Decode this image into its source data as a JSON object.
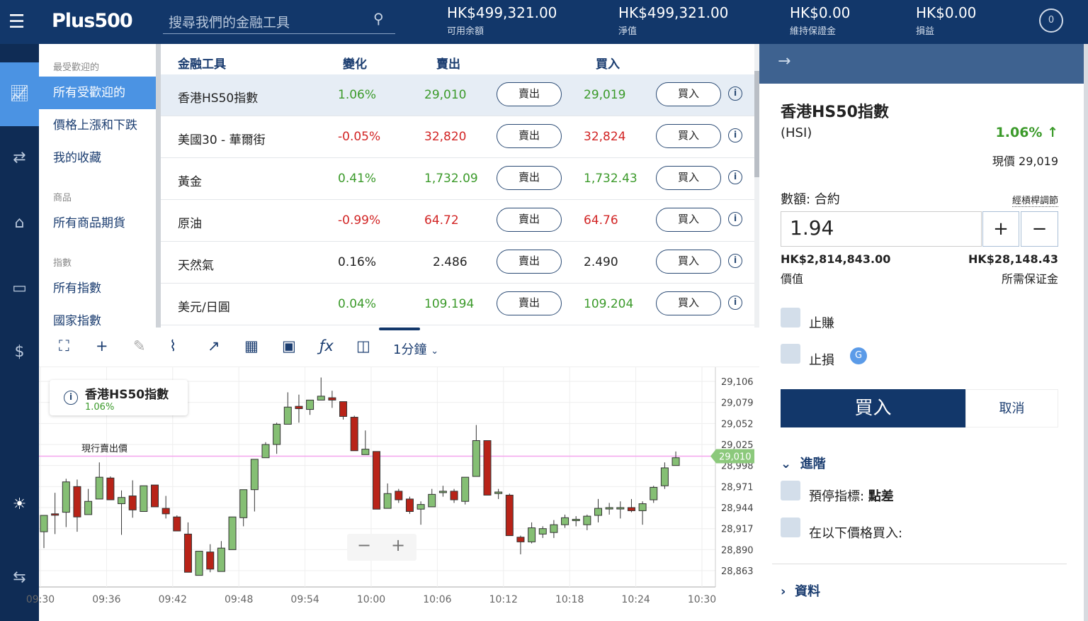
{
  "header": {
    "menu_icon": "hamburger-icon",
    "logo": "Plus500",
    "search_placeholder": "搜尋我們的金融工具",
    "stats": [
      {
        "value": "HK$499,321.00",
        "label": "可用余額"
      },
      {
        "value": "HK$499,321.00",
        "label": "淨值"
      },
      {
        "value": "HK$0.00",
        "label": "維持保證金"
      },
      {
        "value": "HK$0.00",
        "label": "損益"
      }
    ],
    "account_badge": "0"
  },
  "iconbar": [
    "chart-line-icon",
    "exchange-icon",
    "tag-icon",
    "briefcase-icon",
    "dollar-icon",
    "brightness-icon",
    "switch-icon"
  ],
  "menu": {
    "sections": [
      {
        "heading": "最受歡迎的",
        "items": [
          "所有受歡迎的",
          "價格上漲和下跌",
          "我的收藏"
        ]
      },
      {
        "heading": "商品",
        "items": [
          "所有商品期貨"
        ]
      },
      {
        "heading": "指數",
        "items": [
          "所有指數",
          "國家指數"
        ]
      }
    ],
    "active": "所有受歡迎的"
  },
  "table": {
    "headers": {
      "instrument": "金融工具",
      "change": "變化",
      "sell": "賣出",
      "buy": "買入"
    },
    "sell_label": "賣出",
    "buy_label": "買入",
    "rows": [
      {
        "name": "香港HS50指數",
        "change": "1.06%",
        "sell": "29,010",
        "buy": "29,019",
        "dir": "up"
      },
      {
        "name": "美國30 - 華爾街",
        "change": "-0.05%",
        "sell": "32,820",
        "buy": "32,824",
        "dir": "down"
      },
      {
        "name": "黃金",
        "change": "0.41%",
        "sell": "1,732.09",
        "buy": "1,732.43",
        "dir": "up"
      },
      {
        "name": "原油",
        "change": "-0.99%",
        "sell": "64.72",
        "buy": "64.76",
        "dir": "down"
      },
      {
        "name": "天然氣",
        "change": "0.16%",
        "sell": "2.486",
        "buy": "2.490",
        "dir": "flat"
      },
      {
        "name": "美元/日圓",
        "change": "0.04%",
        "sell": "109.194",
        "buy": "109.204",
        "dir": "up"
      }
    ]
  },
  "toolbar": {
    "icons": [
      "fullscreen-icon",
      "crosshair-icon",
      "pencil-icon",
      "chart-type-icon",
      "indicator-icon",
      "layout-grid-icon",
      "save-icon",
      "function-icon",
      "candle-settings-icon"
    ],
    "timeframe": "1分鐘"
  },
  "chart_data": {
    "type": "candlestick",
    "title": "香港HS50指數",
    "change": "1.06%",
    "current_line_label": "現行賣出價",
    "current_price": 29010,
    "current_price_label": "29,010",
    "y_ticks": [
      "29,106",
      "29,079",
      "29,052",
      "29,025",
      "28,998",
      "28,971",
      "28,944",
      "28,917",
      "28,890",
      "28,863"
    ],
    "x_ticks": [
      "09:30",
      "09:36",
      "09:42",
      "09:48",
      "09:54",
      "10:00",
      "10:06",
      "10:12",
      "10:18",
      "10:24",
      "10:30"
    ],
    "ylim": [
      28850,
      29120
    ],
    "grid": true,
    "colors": {
      "up": "#85bf74",
      "down": "#b82318",
      "current": "#f4a6ee"
    },
    "ohlc": [
      [
        28913,
        28934,
        28892,
        28934
      ],
      [
        28936,
        28963,
        28910,
        28935
      ],
      [
        28938,
        28981,
        28919,
        28977
      ],
      [
        28971,
        28980,
        28913,
        28932
      ],
      [
        28935,
        28968,
        28935,
        28952
      ],
      [
        28955,
        29002,
        28955,
        28983
      ],
      [
        28982,
        28984,
        28954,
        28954
      ],
      [
        28949,
        28966,
        28909,
        28957
      ],
      [
        28959,
        28979,
        28931,
        28941
      ],
      [
        28939,
        28972,
        28939,
        28972
      ],
      [
        28973,
        28973,
        28945,
        28945
      ],
      [
        28943,
        28959,
        28930,
        28936
      ],
      [
        28932,
        28934,
        28914,
        28914
      ],
      [
        28910,
        28925,
        28861,
        28861
      ],
      [
        28857,
        28888,
        28857,
        28888
      ],
      [
        28887,
        28897,
        28861,
        28865
      ],
      [
        28862,
        28901,
        28862,
        28892
      ],
      [
        28890,
        28932,
        28890,
        28932
      ],
      [
        28931,
        28967,
        28920,
        28967
      ],
      [
        28967,
        29006,
        28939,
        29006
      ],
      [
        29008,
        29028,
        29008,
        29025
      ],
      [
        29025,
        29053,
        29013,
        29051
      ],
      [
        29051,
        29092,
        29051,
        29073
      ],
      [
        29074,
        29089,
        29053,
        29071
      ],
      [
        29070,
        29082,
        29063,
        29082
      ],
      [
        29082,
        29111,
        29082,
        29087
      ],
      [
        29085,
        29094,
        29072,
        29082
      ],
      [
        29080,
        29080,
        29057,
        29061
      ],
      [
        29060,
        29062,
        29017,
        29017
      ],
      [
        29012,
        29043,
        29012,
        29019
      ],
      [
        29016,
        29016,
        28942,
        28942
      ],
      [
        28943,
        28975,
        28943,
        28962
      ],
      [
        28965,
        28968,
        28950,
        28954
      ],
      [
        28955,
        28958,
        28936,
        28939
      ],
      [
        28942,
        28952,
        28922,
        28948
      ],
      [
        28945,
        28968,
        28945,
        28961
      ],
      [
        28964,
        28972,
        28958,
        28965
      ],
      [
        28965,
        28968,
        28950,
        28954
      ],
      [
        28952,
        28983,
        28948,
        28983
      ],
      [
        28984,
        29050,
        28984,
        29030
      ],
      [
        29030,
        29030,
        28960,
        28960
      ],
      [
        28962,
        28968,
        28955,
        28964
      ],
      [
        28960,
        28962,
        28908,
        28908
      ],
      [
        28906,
        28908,
        28884,
        28900
      ],
      [
        28900,
        28925,
        28898,
        28918
      ],
      [
        28910,
        28920,
        28905,
        28917
      ],
      [
        28912,
        28928,
        28905,
        28922
      ],
      [
        28922,
        28935,
        28918,
        28931
      ],
      [
        28928,
        28933,
        28920,
        28929
      ],
      [
        28922,
        28935,
        28915,
        28933
      ],
      [
        28934,
        28955,
        28925,
        28943
      ],
      [
        28943,
        28950,
        28935,
        28944
      ],
      [
        28943,
        28952,
        28930,
        28944
      ],
      [
        28944,
        28955,
        28938,
        28940
      ],
      [
        28940,
        28952,
        28922,
        28949
      ],
      [
        28954,
        28972,
        28950,
        28970
      ],
      [
        28972,
        29002,
        28968,
        28995
      ],
      [
        28998,
        29016,
        28998,
        29008
      ]
    ],
    "zoom_out": "−",
    "zoom_in": "+"
  },
  "order": {
    "instrument": "香港HS50指數",
    "symbol": "(HSI)",
    "change": "1.06% ↑",
    "price_label": "現價",
    "price": "29,019",
    "amount_label": "數額: 合約",
    "leverage_link": "經槓桿調節",
    "quantity": "1.94",
    "plus": "+",
    "minus": "−",
    "value": "HK$2,814,843.00",
    "value_label": "價值",
    "margin": "HK$28,148.43",
    "margin_label": "所需保证金",
    "take_profit": "止賺",
    "stop_loss": "止損",
    "guaranteed_badge": "G",
    "buy_button": "買入",
    "cancel_button": "取消",
    "advanced": "進階",
    "trailing_stop": "預停指標:",
    "trailing_unit": "點差",
    "buy_at_price": "在以下價格買入:",
    "info_section": "資料",
    "back_arrow": "→"
  }
}
